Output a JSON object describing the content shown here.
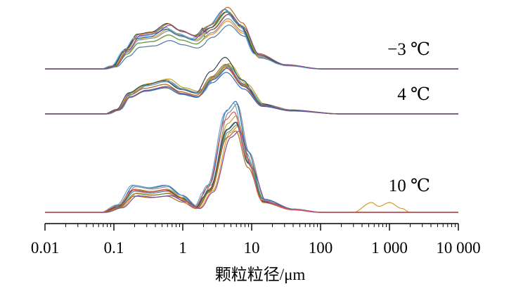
{
  "chart_data": {
    "type": "line",
    "title": "",
    "xlabel": "颗粒粒径/μm",
    "ylabel": "",
    "x_scale": "log",
    "xlim": [
      0.01,
      10000
    ],
    "x_tick_labels": [
      "0.01",
      "0.1",
      "1",
      "10",
      "100",
      "1 000",
      "10 000"
    ],
    "x_tick_values": [
      0.01,
      0.1,
      1,
      10,
      100,
      1000,
      10000
    ],
    "y_axis_shown": false,
    "grid": false,
    "legend": "none",
    "groups": [
      {
        "label": "−3 ℃",
        "curve_count": 10,
        "colors": [
          "#4e79a7",
          "#f28e2b",
          "#8c8c8c",
          "#c9a227",
          "#2f6db5",
          "#59a14f",
          "#37474f",
          "#5fa8c8",
          "#b5651d",
          "#7a4f9a"
        ],
        "range": [
          0.07,
          100
        ],
        "mean_profile": [
          {
            "x": 0.07,
            "y": 0
          },
          {
            "x": 0.1,
            "y": 0.05
          },
          {
            "x": 0.15,
            "y": 0.3
          },
          {
            "x": 0.22,
            "y": 0.52
          },
          {
            "x": 0.35,
            "y": 0.55
          },
          {
            "x": 0.6,
            "y": 0.68
          },
          {
            "x": 0.9,
            "y": 0.58
          },
          {
            "x": 1.5,
            "y": 0.5
          },
          {
            "x": 2.5,
            "y": 0.72
          },
          {
            "x": 4.3,
            "y": 1.0
          },
          {
            "x": 7,
            "y": 0.75
          },
          {
            "x": 12,
            "y": 0.25
          },
          {
            "x": 30,
            "y": 0.07
          },
          {
            "x": 100,
            "y": 0
          }
        ]
      },
      {
        "label": "4 ℃",
        "curve_count": 10,
        "colors": [
          "#4e79a7",
          "#f28e2b",
          "#8c8c8c",
          "#c9a227",
          "#2f6db5",
          "#59a14f",
          "#37474f",
          "#5fa8c8",
          "#b5651d",
          "#7a4f9a"
        ],
        "range": [
          0.08,
          200
        ],
        "mean_profile": [
          {
            "x": 0.08,
            "y": 0
          },
          {
            "x": 0.12,
            "y": 0.08
          },
          {
            "x": 0.18,
            "y": 0.38
          },
          {
            "x": 0.3,
            "y": 0.52
          },
          {
            "x": 0.6,
            "y": 0.6
          },
          {
            "x": 1,
            "y": 0.45
          },
          {
            "x": 1.7,
            "y": 0.38
          },
          {
            "x": 2.8,
            "y": 0.75
          },
          {
            "x": 4.5,
            "y": 1.0
          },
          {
            "x": 8,
            "y": 0.6
          },
          {
            "x": 15,
            "y": 0.18
          },
          {
            "x": 40,
            "y": 0.07
          },
          {
            "x": 200,
            "y": 0
          }
        ]
      },
      {
        "label": "10 ℃",
        "curve_count": 11,
        "colors": [
          "#4e79a7",
          "#f28e2b",
          "#8c8c8c",
          "#c9a227",
          "#2f6db5",
          "#59a14f",
          "#37474f",
          "#5fa8c8",
          "#b5651d",
          "#7a4f9a",
          "#e15759"
        ],
        "range": [
          0.07,
          2000
        ],
        "mean_profile": [
          {
            "x": 0.07,
            "y": 0
          },
          {
            "x": 0.12,
            "y": 0.06
          },
          {
            "x": 0.2,
            "y": 0.22
          },
          {
            "x": 0.35,
            "y": 0.2
          },
          {
            "x": 0.6,
            "y": 0.22
          },
          {
            "x": 1,
            "y": 0.14
          },
          {
            "x": 1.6,
            "y": 0.05
          },
          {
            "x": 2.5,
            "y": 0.25
          },
          {
            "x": 4.5,
            "y": 0.92
          },
          {
            "x": 6,
            "y": 1.0
          },
          {
            "x": 9,
            "y": 0.55
          },
          {
            "x": 15,
            "y": 0.12
          },
          {
            "x": 40,
            "y": 0.03
          },
          {
            "x": 100,
            "y": 0
          }
        ],
        "outlier_tail": [
          {
            "x": 300,
            "y": 0
          },
          {
            "x": 550,
            "y": 0.1
          },
          {
            "x": 700,
            "y": 0.06
          },
          {
            "x": 1000,
            "y": 0.1
          },
          {
            "x": 1500,
            "y": 0.04
          },
          {
            "x": 2000,
            "y": 0
          }
        ]
      }
    ]
  }
}
